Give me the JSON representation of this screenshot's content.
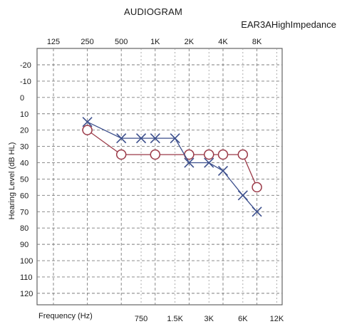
{
  "chart_data": {
    "type": "line",
    "title": "AUDIOGRAM",
    "subtitle": "EAR3AHighImpedance",
    "xlabel": "Frequency (Hz)",
    "ylabel": "Hearing Level (dB HL)",
    "x_scale": "log",
    "x_top_ticks": [
      "125",
      "250",
      "500",
      "1K",
      "2K",
      "4K",
      "8K"
    ],
    "x_top_tick_values": [
      125,
      250,
      500,
      1000,
      2000,
      4000,
      8000
    ],
    "x_bottom_ticks": [
      "750",
      "1.5K",
      "3K",
      "6K",
      "12K"
    ],
    "x_bottom_tick_values": [
      750,
      1500,
      3000,
      6000,
      12000
    ],
    "y_ticks": [
      -20,
      -10,
      0,
      10,
      20,
      30,
      40,
      50,
      60,
      70,
      80,
      90,
      100,
      110,
      120
    ],
    "ylim": [
      -25,
      125
    ],
    "y_inverted": true,
    "grid": true,
    "series": [
      {
        "marker": "circle",
        "color": "#9b3a48",
        "x": [
          250,
          500,
          1000,
          2000,
          3000,
          4000,
          6000,
          8000
        ],
        "y": [
          20,
          35,
          35,
          35,
          35,
          35,
          35,
          55
        ]
      },
      {
        "marker": "x",
        "color": "#3c4f8c",
        "x": [
          250,
          500,
          750,
          1000,
          1500,
          2000,
          3000,
          4000,
          6000,
          8000
        ],
        "y": [
          15,
          25,
          25,
          25,
          25,
          40,
          40,
          45,
          60,
          70
        ]
      }
    ]
  }
}
